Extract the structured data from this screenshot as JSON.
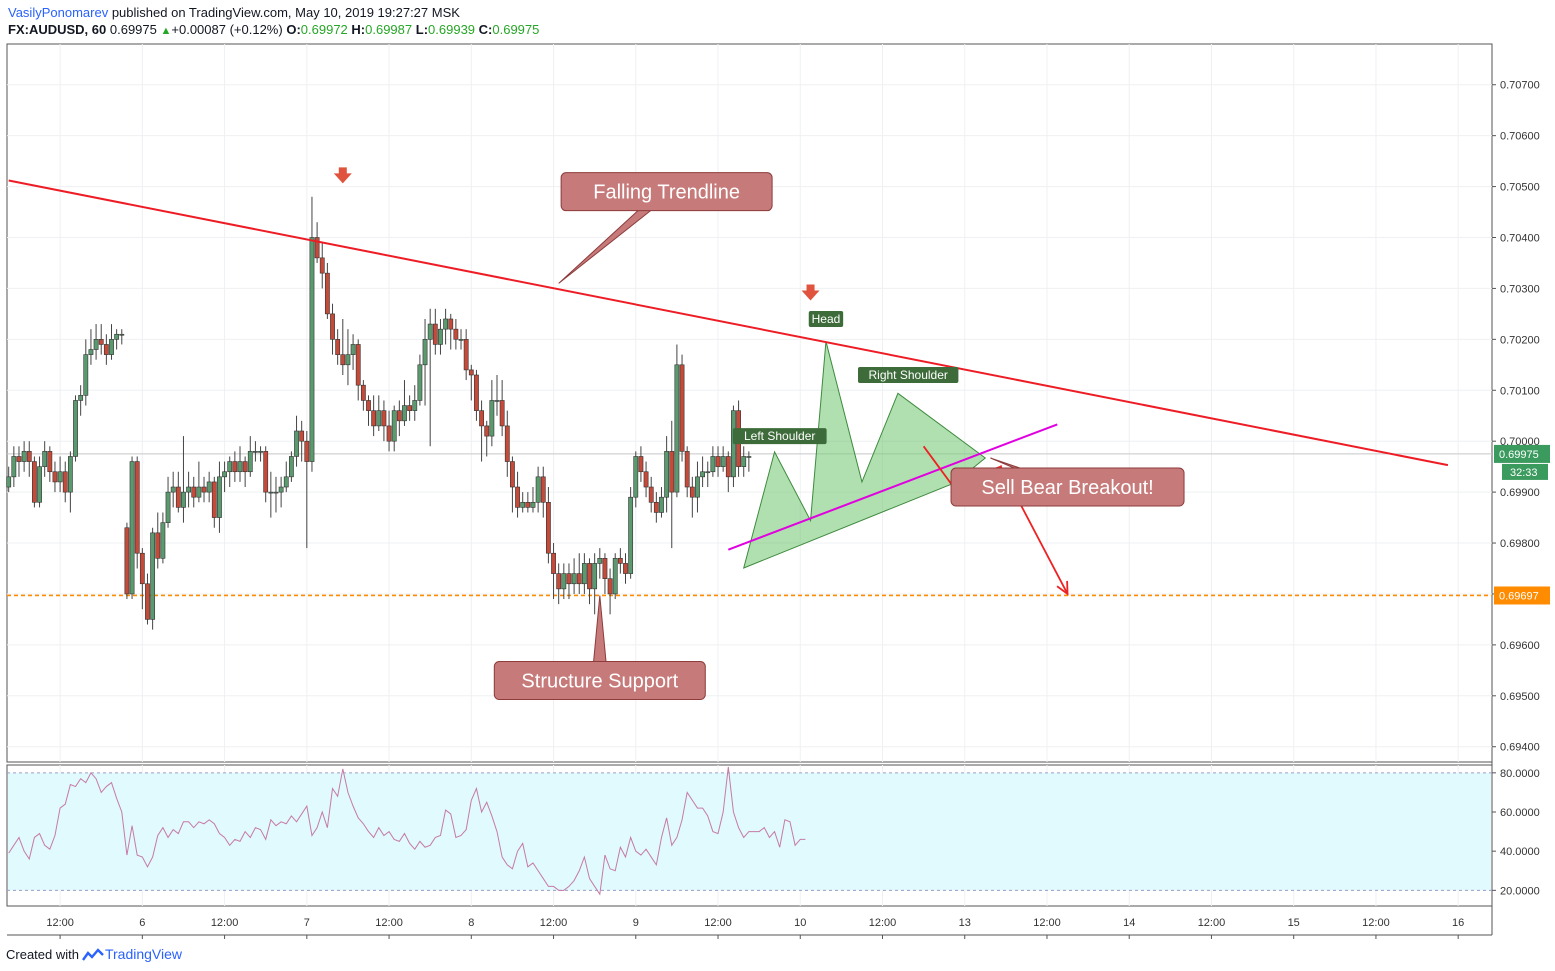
{
  "header": {
    "author": "VasilyPonomarev",
    "published_text": "published on TradingView.com, May 10, 2019 19:27:27 MSK",
    "symbol": "FX:AUDUSD, 60",
    "last": "0.69975",
    "change": "+0.00087 (+0.12%)",
    "open_label": "O:",
    "open": "0.69972",
    "high_label": "H:",
    "high": "0.69987",
    "low_label": "L:",
    "low": "0.69939",
    "close_label": "C:",
    "close": "0.69975"
  },
  "footer": {
    "created_with": "Created with",
    "brand": "TradingView"
  },
  "colors": {
    "bull": "#5b9a6e",
    "bear": "#c44a3a",
    "trendline": "#ee1c25",
    "support": "#ff8c00",
    "wedge": "#e000e0",
    "callout": "#c67a7a",
    "pattern_fill": "#7cc97c",
    "rsi_band": "#e0fafe",
    "rsi_line": "#c77aa6"
  },
  "chart_data": {
    "type": "candlestick",
    "symbol": "FX:AUDUSD",
    "timeframe": "60",
    "ylim": [
      0.6937,
      0.7078
    ],
    "price_ticks": [
      "0.70700",
      "0.70600",
      "0.70500",
      "0.70400",
      "0.70300",
      "0.70200",
      "0.70100",
      "0.70000",
      "0.69900",
      "0.69800",
      "0.69700",
      "0.69600",
      "0.69500",
      "0.69400"
    ],
    "current_price": "0.69975",
    "countdown": "32:33",
    "support_price": "0.69697",
    "x_axis_labels": [
      "12:00",
      "6",
      "12:00",
      "7",
      "12:00",
      "8",
      "12:00",
      "9",
      "12:00",
      "10",
      "12:00",
      "13",
      "12:00",
      "14",
      "12:00",
      "15",
      "12:00",
      "16"
    ],
    "x_axis_index": [
      10,
      26,
      42,
      58,
      74,
      90,
      106,
      122,
      138,
      154,
      170,
      186,
      202,
      218,
      234,
      250,
      266,
      282
    ],
    "candles": [
      [
        0.6991,
        0.6993,
        0.699,
        0.6995
      ],
      [
        0.6993,
        0.6997,
        0.6991,
        0.6999
      ],
      [
        0.6997,
        0.6996,
        0.6993,
        0.6999
      ],
      [
        0.6996,
        0.6998,
        0.6994,
        0.7
      ],
      [
        0.6998,
        0.6996,
        0.6993,
        0.7
      ],
      [
        0.6996,
        0.6988,
        0.6987,
        0.6997
      ],
      [
        0.6988,
        0.6995,
        0.6987,
        0.6997
      ],
      [
        0.6995,
        0.6998,
        0.6993,
        0.7
      ],
      [
        0.6998,
        0.6994,
        0.6992,
        0.6999
      ],
      [
        0.6994,
        0.6992,
        0.699,
        0.6996
      ],
      [
        0.6992,
        0.6994,
        0.699,
        0.6997
      ],
      [
        0.6994,
        0.699,
        0.6988,
        0.6996
      ],
      [
        0.699,
        0.6997,
        0.6986,
        0.6998
      ],
      [
        0.6997,
        0.7008,
        0.6996,
        0.7009
      ],
      [
        0.7008,
        0.7009,
        0.7005,
        0.7011
      ],
      [
        0.7009,
        0.7017,
        0.7007,
        0.702
      ],
      [
        0.7017,
        0.7018,
        0.7015,
        0.7022
      ],
      [
        0.7018,
        0.702,
        0.7016,
        0.7023
      ],
      [
        0.702,
        0.7019,
        0.7017,
        0.7023
      ],
      [
        0.7019,
        0.7017,
        0.7015,
        0.7021
      ],
      [
        0.7017,
        0.702,
        0.7016,
        0.7023
      ],
      [
        0.702,
        0.7021,
        0.7018,
        0.7022
      ],
      [
        0.7021,
        0.7021,
        0.7019,
        0.7022
      ],
      [
        0.6983,
        0.697,
        0.6969,
        0.6984
      ],
      [
        0.697,
        0.6996,
        0.6969,
        0.6997
      ],
      [
        0.6996,
        0.6978,
        0.6975,
        0.6997
      ],
      [
        0.6978,
        0.6972,
        0.6967,
        0.6979
      ],
      [
        0.6972,
        0.6965,
        0.6964,
        0.6974
      ],
      [
        0.6965,
        0.6982,
        0.6963,
        0.6983
      ],
      [
        0.6982,
        0.6977,
        0.6975,
        0.6986
      ],
      [
        0.6977,
        0.6984,
        0.6976,
        0.6986
      ],
      [
        0.6984,
        0.699,
        0.6983,
        0.6993
      ],
      [
        0.699,
        0.6991,
        0.6987,
        0.6994
      ],
      [
        0.6991,
        0.6987,
        0.6986,
        0.6994
      ],
      [
        0.6987,
        0.699,
        0.6984,
        0.7001
      ],
      [
        0.699,
        0.6991,
        0.6987,
        0.6994
      ],
      [
        0.6991,
        0.6989,
        0.6987,
        0.6993
      ],
      [
        0.6989,
        0.6991,
        0.6988,
        0.6996
      ],
      [
        0.6991,
        0.699,
        0.6988,
        0.6993
      ],
      [
        0.699,
        0.6992,
        0.6988,
        0.6994
      ],
      [
        0.6992,
        0.6985,
        0.6983,
        0.6993
      ],
      [
        0.6985,
        0.6993,
        0.6982,
        0.6996
      ],
      [
        0.6993,
        0.6994,
        0.699,
        0.6996
      ],
      [
        0.6994,
        0.6996,
        0.6991,
        0.6997
      ],
      [
        0.6996,
        0.6994,
        0.6992,
        0.6998
      ],
      [
        0.6994,
        0.6996,
        0.6992,
        0.6999
      ],
      [
        0.6996,
        0.6994,
        0.6991,
        0.6997
      ],
      [
        0.6994,
        0.6998,
        0.6993,
        0.7001
      ],
      [
        0.6998,
        0.6998,
        0.6996,
        0.7
      ],
      [
        0.6998,
        0.6998,
        0.6996,
        0.6999
      ],
      [
        0.6998,
        0.699,
        0.6988,
        0.6999
      ],
      [
        0.699,
        0.699,
        0.6985,
        0.6994
      ],
      [
        0.699,
        0.699,
        0.6986,
        0.6993
      ],
      [
        0.699,
        0.6991,
        0.6987,
        0.6993
      ],
      [
        0.6991,
        0.6993,
        0.699,
        0.6996
      ],
      [
        0.6993,
        0.6997,
        0.6992,
        0.6998
      ],
      [
        0.6997,
        0.7002,
        0.6995,
        0.7005
      ],
      [
        0.7002,
        0.7,
        0.6996,
        0.7004
      ],
      [
        0.7,
        0.6996,
        0.6979,
        0.7002
      ],
      [
        0.6996,
        0.704,
        0.6994,
        0.7048
      ],
      [
        0.704,
        0.7036,
        0.7035,
        0.7043
      ],
      [
        0.7036,
        0.7033,
        0.703,
        0.7039
      ],
      [
        0.7033,
        0.7025,
        0.7024,
        0.7035
      ],
      [
        0.7025,
        0.702,
        0.7017,
        0.7027
      ],
      [
        0.702,
        0.7017,
        0.7015,
        0.7022
      ],
      [
        0.7017,
        0.7015,
        0.7013,
        0.7024
      ],
      [
        0.7015,
        0.7017,
        0.7011,
        0.7022
      ],
      [
        0.7017,
        0.7019,
        0.7014,
        0.7021
      ],
      [
        0.7019,
        0.7011,
        0.7008,
        0.702
      ],
      [
        0.7011,
        0.7008,
        0.7006,
        0.7012
      ],
      [
        0.7008,
        0.7006,
        0.7003,
        0.7009
      ],
      [
        0.7006,
        0.7003,
        0.7001,
        0.7009
      ],
      [
        0.7003,
        0.7006,
        0.7002,
        0.7009
      ],
      [
        0.7006,
        0.7003,
        0.7,
        0.7008
      ],
      [
        0.7003,
        0.7,
        0.6998,
        0.7006
      ],
      [
        0.7,
        0.7006,
        0.6998,
        0.7007
      ],
      [
        0.7006,
        0.7004,
        0.7001,
        0.7008
      ],
      [
        0.7004,
        0.7007,
        0.7003,
        0.7012
      ],
      [
        0.7007,
        0.7006,
        0.7004,
        0.7009
      ],
      [
        0.7006,
        0.7008,
        0.7004,
        0.7011
      ],
      [
        0.7008,
        0.7015,
        0.7007,
        0.7017
      ],
      [
        0.7015,
        0.702,
        0.7007,
        0.7024
      ],
      [
        0.702,
        0.7023,
        0.6999,
        0.7026
      ],
      [
        0.7023,
        0.7019,
        0.7017,
        0.7026
      ],
      [
        0.7019,
        0.7022,
        0.7017,
        0.7024
      ],
      [
        0.7022,
        0.7024,
        0.7019,
        0.7026
      ],
      [
        0.7024,
        0.7022,
        0.7018,
        0.7025
      ],
      [
        0.7022,
        0.702,
        0.7018,
        0.7024
      ],
      [
        0.702,
        0.702,
        0.7018,
        0.7022
      ],
      [
        0.702,
        0.7014,
        0.7012,
        0.7022
      ],
      [
        0.7014,
        0.7013,
        0.7008,
        0.7015
      ],
      [
        0.7013,
        0.7006,
        0.7004,
        0.7014
      ],
      [
        0.7006,
        0.7003,
        0.6996,
        0.7008
      ],
      [
        0.7003,
        0.7001,
        0.6997,
        0.7004
      ],
      [
        0.7001,
        0.7008,
        0.6999,
        0.7012
      ],
      [
        0.7008,
        0.7008,
        0.7005,
        0.7013
      ],
      [
        0.7008,
        0.7003,
        0.7001,
        0.7012
      ],
      [
        0.7003,
        0.6996,
        0.6993,
        0.7006
      ],
      [
        0.6996,
        0.6991,
        0.6986,
        0.6997
      ],
      [
        0.6991,
        0.6987,
        0.6985,
        0.6994
      ],
      [
        0.6987,
        0.6988,
        0.6986,
        0.699
      ],
      [
        0.6988,
        0.6987,
        0.6986,
        0.699
      ],
      [
        0.6987,
        0.6988,
        0.6986,
        0.6991
      ],
      [
        0.6988,
        0.6993,
        0.6986,
        0.6995
      ],
      [
        0.6993,
        0.6988,
        0.6985,
        0.6995
      ],
      [
        0.6988,
        0.6978,
        0.6976,
        0.6991
      ],
      [
        0.6978,
        0.6974,
        0.6969,
        0.698
      ],
      [
        0.6974,
        0.6971,
        0.6968,
        0.6976
      ],
      [
        0.6971,
        0.6974,
        0.6969,
        0.6976
      ],
      [
        0.6974,
        0.6972,
        0.6969,
        0.6976
      ],
      [
        0.6972,
        0.6974,
        0.697,
        0.6977
      ],
      [
        0.6974,
        0.6972,
        0.697,
        0.6978
      ],
      [
        0.6972,
        0.6976,
        0.697,
        0.6978
      ],
      [
        0.6976,
        0.6971,
        0.6968,
        0.6977
      ],
      [
        0.6971,
        0.6976,
        0.6966,
        0.6978
      ],
      [
        0.6976,
        0.6977,
        0.6973,
        0.6979
      ],
      [
        0.6977,
        0.6973,
        0.697,
        0.6978
      ],
      [
        0.6973,
        0.697,
        0.6966,
        0.6975
      ],
      [
        0.697,
        0.6977,
        0.6969,
        0.6978
      ],
      [
        0.6977,
        0.6976,
        0.6974,
        0.6979
      ],
      [
        0.6976,
        0.6974,
        0.6972,
        0.6978
      ],
      [
        0.6974,
        0.6989,
        0.6973,
        0.6991
      ],
      [
        0.6989,
        0.6997,
        0.6987,
        0.6998
      ],
      [
        0.6997,
        0.6994,
        0.6992,
        0.6999
      ],
      [
        0.6994,
        0.6991,
        0.6989,
        0.6996
      ],
      [
        0.6991,
        0.6988,
        0.6986,
        0.6993
      ],
      [
        0.6988,
        0.6986,
        0.6984,
        0.699
      ],
      [
        0.6986,
        0.6989,
        0.6985,
        0.6991
      ],
      [
        0.6989,
        0.6998,
        0.6986,
        0.7001
      ],
      [
        0.6998,
        0.699,
        0.6979,
        0.7004
      ],
      [
        0.699,
        0.7015,
        0.6989,
        0.7019
      ],
      [
        0.7015,
        0.6998,
        0.6996,
        0.7017
      ],
      [
        0.6998,
        0.6991,
        0.6989,
        0.6999
      ],
      [
        0.6991,
        0.6989,
        0.6985,
        0.6993
      ],
      [
        0.6989,
        0.6993,
        0.6986,
        0.6996
      ],
      [
        0.6993,
        0.6994,
        0.6991,
        0.6997
      ],
      [
        0.6994,
        0.6994,
        0.6991,
        0.6996
      ],
      [
        0.6994,
        0.6997,
        0.6993,
        0.6999
      ],
      [
        0.6997,
        0.6995,
        0.6993,
        0.6999
      ],
      [
        0.6995,
        0.6997,
        0.6994,
        0.6999
      ],
      [
        0.6997,
        0.6993,
        0.699,
        0.6998
      ],
      [
        0.6993,
        0.7006,
        0.6991,
        0.7007
      ],
      [
        0.7006,
        0.6995,
        0.6993,
        0.7008
      ],
      [
        0.6995,
        0.6997,
        0.6993,
        0.6999
      ],
      [
        0.6997,
        0.6997,
        0.6994,
        0.6998
      ]
    ],
    "support_start_index": 31,
    "trendline": {
      "from": [
        0,
        0.70512
      ],
      "to": [
        280,
        0.69953
      ]
    },
    "wedge_line": {
      "from": [
        140,
        0.69787
      ],
      "to": [
        204,
        0.70033
      ]
    },
    "pattern_triangle": [
      [
        143,
        0.69751
      ],
      [
        149,
        0.69979
      ],
      [
        156,
        0.69844
      ],
      [
        159,
        0.70196
      ],
      [
        166,
        0.6992
      ],
      [
        173,
        0.70094
      ],
      [
        190,
        0.69967
      ],
      [
        184,
        0.69918
      ]
    ],
    "labels": [
      {
        "text": "Left Shoulder",
        "at": [
          150,
          0.7001
        ]
      },
      {
        "text": "Head",
        "at": [
          159,
          0.7024
        ]
      },
      {
        "text": "Right Shoulder",
        "at": [
          175,
          0.7013
        ]
      }
    ],
    "peak_arrows": [
      [
        65,
        0.7052
      ],
      [
        156,
        0.7029
      ]
    ],
    "forecast_arrow": [
      [
        178,
        0.6999
      ],
      [
        186,
        0.6988
      ],
      [
        193,
        0.6995
      ],
      [
        206,
        0.697
      ]
    ],
    "callouts": [
      {
        "text": "Falling Trendline",
        "box": [
          128,
          0.7049
        ],
        "tip": [
          107,
          0.7031
        ]
      },
      {
        "text": "Sell Bear Breakout!",
        "box": [
          206,
          0.6991
        ],
        "tip": [
          191,
          0.69967
        ]
      },
      {
        "text": "Structure Support",
        "box": [
          115,
          0.6953
        ],
        "tip": [
          115,
          0.69697
        ]
      }
    ],
    "rsi": {
      "ylim": [
        12,
        84
      ],
      "upper_band": 80,
      "lower_band": 20,
      "ticks": [
        "80.0000",
        "60.0000",
        "40.0000",
        "20.0000"
      ],
      "values": [
        39,
        43,
        47,
        40,
        36,
        47,
        49,
        43,
        41,
        48,
        62,
        64,
        74,
        73,
        77,
        75,
        80,
        77,
        70,
        73,
        75,
        67,
        60,
        38,
        53,
        38,
        37,
        32,
        37,
        48,
        52,
        47,
        51,
        49,
        55,
        55,
        52,
        55,
        54,
        56,
        54,
        49,
        47,
        43,
        46,
        45,
        50,
        47,
        52,
        51,
        46,
        56,
        53,
        55,
        54,
        58,
        55,
        59,
        63,
        48,
        52,
        60,
        52,
        72,
        68,
        82,
        70,
        63,
        57,
        54,
        50,
        47,
        52,
        48,
        50,
        46,
        45,
        49,
        44,
        41,
        45,
        42,
        43,
        47,
        48,
        61,
        59,
        47,
        48,
        51,
        66,
        72,
        60,
        65,
        58,
        50,
        37,
        33,
        31,
        40,
        44,
        32,
        34,
        30,
        26,
        22,
        22,
        20,
        20,
        22,
        25,
        30,
        37,
        26,
        22,
        18,
        38,
        31,
        30,
        42,
        37,
        47,
        40,
        38,
        41,
        37,
        33,
        47,
        57,
        43,
        47,
        56,
        70,
        66,
        62,
        62,
        58,
        50,
        49,
        60,
        83,
        60,
        52,
        47,
        50,
        50,
        50,
        52,
        47,
        50,
        42,
        56,
        55,
        43,
        46,
        46
      ]
    }
  }
}
